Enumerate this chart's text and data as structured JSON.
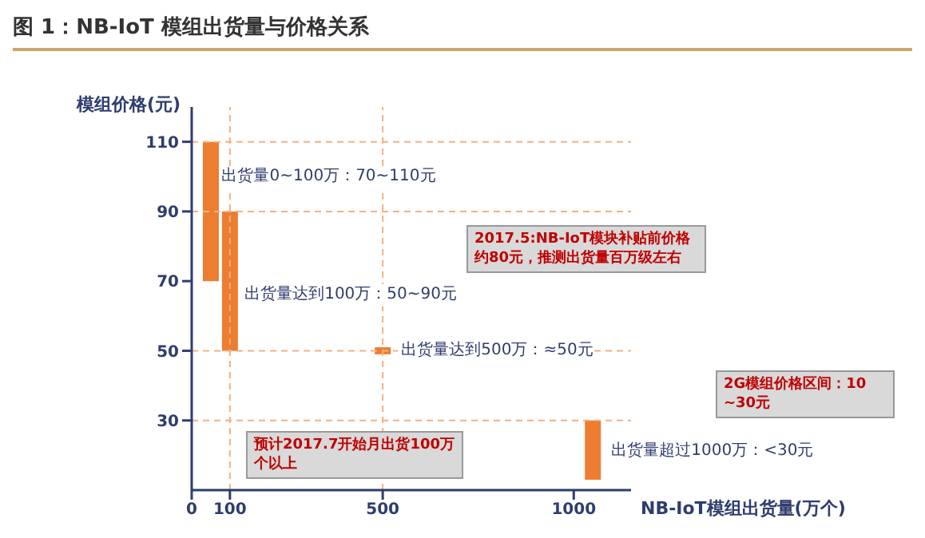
{
  "chart_data": {
    "type": "bar",
    "title": "图 1：NB-IoT 模组出货量与价格关系",
    "xlabel": "NB-IoT模组出货量(万个)",
    "ylabel": "模组价格(元)",
    "x": [
      50,
      100,
      500,
      1050
    ],
    "values": [
      40,
      40,
      2,
      17
    ],
    "base": [
      70,
      50,
      49,
      13
    ],
    "color": "#ed7d31",
    "xlim": [
      0,
      1150
    ],
    "xticks": [
      0,
      100,
      500,
      1000
    ],
    "ylim": [
      10,
      120
    ],
    "yticks": [
      30,
      50,
      70,
      90,
      110
    ],
    "grid": false,
    "legend": false,
    "ref_lines": [
      {
        "axis": "y",
        "value": 110,
        "color": "#f4b183",
        "line_style": "dashed"
      },
      {
        "axis": "y",
        "value": 90,
        "color": "#f4b183",
        "line_style": "dashed"
      },
      {
        "axis": "y",
        "value": 50,
        "color": "#f4b183",
        "line_style": "dashed"
      },
      {
        "axis": "y",
        "value": 30,
        "color": "#f4b183",
        "line_style": "dashed"
      },
      {
        "axis": "x",
        "value": 100,
        "color": "#f4b183",
        "line_style": "dashed"
      },
      {
        "axis": "x",
        "value": 500,
        "color": "#f4b183",
        "line_style": "dashed"
      }
    ],
    "annotations": [
      {
        "text": "出货量0~100万：70~110元",
        "x": 70,
        "y": 100
      },
      {
        "text": "出货量达到100万：50~90元",
        "x": 130,
        "y": 66
      },
      {
        "text": "出货量达到500万：≈50元",
        "x": 540,
        "y": 50
      },
      {
        "text": "出货量超过1000万：<30元",
        "x": 1090,
        "y": 21
      },
      "2017.5:NB-IoT模块补贴前价格约80元，推测出货量百万级左右",
      "2G模组价格区间：10 ~30元",
      "预计2017.7开始月出货100万个以上"
    ]
  }
}
